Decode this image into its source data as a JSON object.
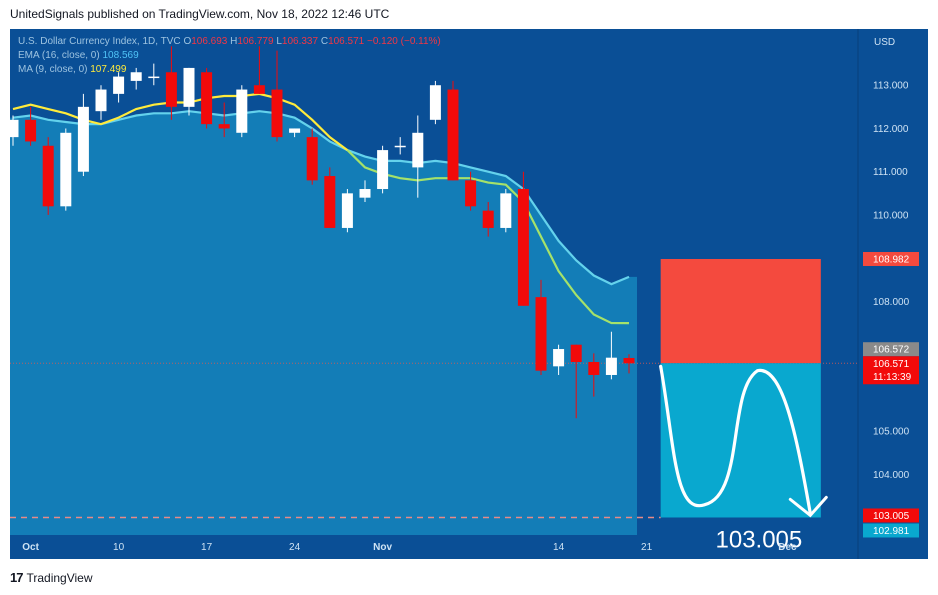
{
  "header": {
    "publisher_line": "UnitedSignals published on TradingView.com, Nov 18, 2022 12:46 UTC"
  },
  "legend": {
    "symbol": "U.S. Dollar Currency Index, 1D, TVC",
    "o_label": "O",
    "o_value": "106.693",
    "h_label": "H",
    "h_value": "106.779",
    "l_label": "L",
    "l_value": "106.337",
    "c_label": "C",
    "c_value": "106.571",
    "change": "−0.120 (−0.11%)",
    "ema_label": "EMA (16, close, 0)",
    "ema_value": "108.569",
    "ma_label": "MA (9, close, 0)",
    "ma_value": "107.499"
  },
  "footer": {
    "logo_mark": "17",
    "logo_text": "TradingView"
  },
  "colors": {
    "plot_bg": "#0a4f96",
    "area": "#1480b8",
    "ema": "#64d2ec",
    "ma_old": "#ffeb3b",
    "ma_new": "#a5e26a",
    "bull": "#ffffff",
    "bear": "#f20a0a",
    "stop_box": "#f44a3e",
    "target_box": "#09a8cf"
  },
  "chart_data": {
    "type": "candlestick",
    "currency": "USD",
    "y_range": [
      102.6,
      114.3
    ],
    "y_ticks": [
      "113.000",
      "112.000",
      "111.000",
      "110.000",
      "108.000",
      "105.000",
      "104.000"
    ],
    "x_labels": [
      {
        "label": "Oct",
        "index": 1
      },
      {
        "label": "10",
        "index": 6
      },
      {
        "label": "17",
        "index": 11
      },
      {
        "label": "24",
        "index": 16
      },
      {
        "label": "Nov",
        "index": 21
      },
      {
        "label": "14",
        "index": 31
      },
      {
        "label": "21",
        "index": 36
      },
      {
        "label": "Dec",
        "index": 44
      }
    ],
    "candles": [
      {
        "o": 111.8,
        "h": 112.3,
        "l": 111.6,
        "c": 112.2
      },
      {
        "o": 112.2,
        "h": 112.5,
        "l": 111.6,
        "c": 111.7
      },
      {
        "o": 111.6,
        "h": 111.8,
        "l": 110.0,
        "c": 110.2
      },
      {
        "o": 110.2,
        "h": 112.0,
        "l": 110.1,
        "c": 111.9
      },
      {
        "o": 111.0,
        "h": 112.8,
        "l": 110.9,
        "c": 112.5
      },
      {
        "o": 112.4,
        "h": 113.0,
        "l": 112.2,
        "c": 112.9
      },
      {
        "o": 112.8,
        "h": 113.3,
        "l": 112.6,
        "c": 113.2
      },
      {
        "o": 113.1,
        "h": 113.4,
        "l": 112.9,
        "c": 113.3
      },
      {
        "o": 113.2,
        "h": 113.5,
        "l": 113.0,
        "c": 113.2
      },
      {
        "o": 113.3,
        "h": 113.9,
        "l": 112.2,
        "c": 112.5
      },
      {
        "o": 112.5,
        "h": 113.4,
        "l": 112.3,
        "c": 113.4
      },
      {
        "o": 113.3,
        "h": 113.4,
        "l": 112.0,
        "c": 112.1
      },
      {
        "o": 112.1,
        "h": 112.6,
        "l": 111.8,
        "c": 112.0
      },
      {
        "o": 111.9,
        "h": 113.0,
        "l": 111.8,
        "c": 112.9
      },
      {
        "o": 113.0,
        "h": 113.9,
        "l": 112.8,
        "c": 112.8
      },
      {
        "o": 112.9,
        "h": 113.8,
        "l": 111.7,
        "c": 111.8
      },
      {
        "o": 111.9,
        "h": 112.0,
        "l": 111.8,
        "c": 112.0
      },
      {
        "o": 111.8,
        "h": 112.0,
        "l": 110.7,
        "c": 110.8
      },
      {
        "o": 110.9,
        "h": 111.1,
        "l": 109.8,
        "c": 109.7
      },
      {
        "o": 109.7,
        "h": 110.6,
        "l": 109.6,
        "c": 110.5
      },
      {
        "o": 110.4,
        "h": 110.8,
        "l": 110.3,
        "c": 110.6
      },
      {
        "o": 110.6,
        "h": 111.6,
        "l": 110.5,
        "c": 111.5
      },
      {
        "o": 111.6,
        "h": 111.8,
        "l": 111.4,
        "c": 111.6
      },
      {
        "o": 111.1,
        "h": 112.3,
        "l": 110.4,
        "c": 111.9
      },
      {
        "o": 112.2,
        "h": 113.1,
        "l": 112.1,
        "c": 113.0
      },
      {
        "o": 112.9,
        "h": 113.1,
        "l": 110.8,
        "c": 110.8
      },
      {
        "o": 110.8,
        "h": 111.0,
        "l": 110.1,
        "c": 110.2
      },
      {
        "o": 110.1,
        "h": 110.3,
        "l": 109.5,
        "c": 109.7
      },
      {
        "o": 109.7,
        "h": 110.6,
        "l": 109.6,
        "c": 110.5
      },
      {
        "o": 110.6,
        "h": 111.0,
        "l": 107.9,
        "c": 107.9
      },
      {
        "o": 108.1,
        "h": 108.5,
        "l": 106.3,
        "c": 106.4
      },
      {
        "o": 106.5,
        "h": 107.0,
        "l": 106.3,
        "c": 106.9
      },
      {
        "o": 107.0,
        "h": 107.0,
        "l": 105.3,
        "c": 106.6
      },
      {
        "o": 106.6,
        "h": 106.8,
        "l": 105.8,
        "c": 106.3
      },
      {
        "o": 106.3,
        "h": 107.3,
        "l": 106.2,
        "c": 106.7
      },
      {
        "o": 106.693,
        "h": 106.779,
        "l": 106.337,
        "c": 106.571
      }
    ],
    "ema": [
      112.25,
      112.3,
      112.2,
      112.15,
      112.1,
      112.1,
      112.2,
      112.3,
      112.35,
      112.35,
      112.4,
      112.35,
      112.3,
      112.35,
      112.4,
      112.35,
      112.25,
      112.0,
      111.7,
      111.5,
      111.35,
      111.25,
      111.25,
      111.2,
      111.25,
      111.2,
      111.1,
      111.0,
      110.9,
      110.6,
      110.0,
      109.4,
      108.95,
      108.6,
      108.4,
      108.569
    ],
    "ma": [
      112.45,
      112.55,
      112.45,
      112.35,
      112.2,
      112.1,
      112.25,
      112.45,
      112.55,
      112.6,
      112.6,
      112.7,
      112.75,
      112.75,
      112.8,
      112.7,
      112.55,
      112.2,
      111.8,
      111.5,
      111.1,
      110.95,
      110.85,
      110.8,
      110.85,
      110.85,
      110.85,
      110.75,
      110.7,
      110.3,
      109.5,
      108.7,
      108.15,
      107.7,
      107.5,
      107.499
    ],
    "last_price_line": 106.571,
    "target_line": 103.005,
    "position_box": {
      "start_index": 36.8,
      "end_index": 45.9,
      "stop": 108.982,
      "entry": 106.572,
      "target": 103.005
    },
    "forecast_path": [
      {
        "i": 36.8,
        "p": 106.5
      },
      {
        "i": 39.3,
        "p": 103.3
      },
      {
        "i": 42.3,
        "p": 106.4
      },
      {
        "i": 44.0,
        "p": 105.8
      },
      {
        "i": 45.3,
        "p": 103.1
      }
    ],
    "price_labels": {
      "stop": "108.982",
      "entry": "106.572",
      "last": "106.571",
      "countdown": "11:13:39",
      "target": "103.005",
      "target_lower": "102.981"
    },
    "target_callout": "103.005"
  }
}
